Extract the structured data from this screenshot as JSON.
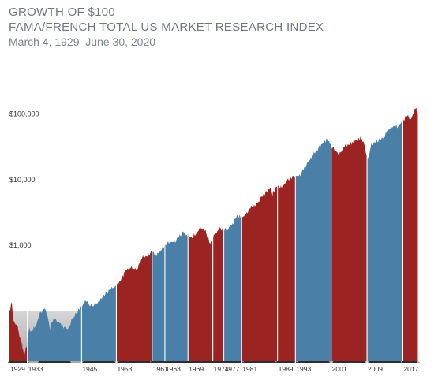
{
  "header": {
    "title": "GROWTH OF $100",
    "subtitle": "FAMA/FRENCH TOTAL US MARKET RESEARCH INDEX",
    "date_range": "March 4, 1929–June 30, 2020"
  },
  "colors": {
    "democrat": "#4a7fa8",
    "republican": "#9b2422",
    "photo_bg": "#bdbdbd"
  },
  "chart_data": {
    "type": "area",
    "title": "GROWTH OF $100",
    "subtitle": "FAMA/FRENCH TOTAL US MARKET RESEARCH INDEX",
    "xlim": [
      1929.17,
      2020.5
    ],
    "ylim": [
      17,
      480000
    ],
    "yscale": "log",
    "yticks": [
      {
        "value": 1000,
        "label": "$1,000"
      },
      {
        "value": 10000,
        "label": "$10,000"
      },
      {
        "value": 100000,
        "label": "$100,000"
      }
    ],
    "series_points": [
      [
        1929.17,
        100
      ],
      [
        1929.7,
        130
      ],
      [
        1930.0,
        72
      ],
      [
        1931.0,
        55
      ],
      [
        1932.0,
        28
      ],
      [
        1932.45,
        20
      ],
      [
        1933.0,
        30
      ],
      [
        1933.6,
        55
      ],
      [
        1934.0,
        48
      ],
      [
        1935.0,
        58
      ],
      [
        1936.0,
        90
      ],
      [
        1937.0,
        110
      ],
      [
        1937.7,
        80
      ],
      [
        1938.2,
        55
      ],
      [
        1939.0,
        75
      ],
      [
        1940.0,
        70
      ],
      [
        1941.0,
        58
      ],
      [
        1942.3,
        52
      ],
      [
        1943.0,
        72
      ],
      [
        1945.0,
        110
      ],
      [
        1946.3,
        145
      ],
      [
        1947.0,
        120
      ],
      [
        1948.0,
        125
      ],
      [
        1949.0,
        130
      ],
      [
        1950.0,
        165
      ],
      [
        1952.0,
        220
      ],
      [
        1953.0,
        235
      ],
      [
        1954.0,
        290
      ],
      [
        1955.0,
        400
      ],
      [
        1956.0,
        460
      ],
      [
        1957.7,
        420
      ],
      [
        1958.0,
        500
      ],
      [
        1959.0,
        650
      ],
      [
        1960.0,
        680
      ],
      [
        1961.0,
        800
      ],
      [
        1962.0,
        700
      ],
      [
        1963.0,
        850
      ],
      [
        1964.0,
        1000
      ],
      [
        1965.0,
        1150
      ],
      [
        1966.0,
        1080
      ],
      [
        1967.0,
        1350
      ],
      [
        1968.0,
        1550
      ],
      [
        1969.0,
        1400
      ],
      [
        1970.0,
        1300
      ],
      [
        1971.0,
        1550
      ],
      [
        1972.0,
        1850
      ],
      [
        1973.0,
        1600
      ],
      [
        1974.0,
        1050
      ],
      [
        1975.0,
        1400
      ],
      [
        1976.0,
        1800
      ],
      [
        1977.0,
        1700
      ],
      [
        1978.0,
        1800
      ],
      [
        1979.0,
        2100
      ],
      [
        1980.0,
        2800
      ],
      [
        1981.0,
        2650
      ],
      [
        1982.0,
        2900
      ],
      [
        1983.0,
        3800
      ],
      [
        1984.0,
        3900
      ],
      [
        1985.0,
        5000
      ],
      [
        1986.0,
        6000
      ],
      [
        1987.6,
        7500
      ],
      [
        1987.9,
        5500
      ],
      [
        1988.0,
        6200
      ],
      [
        1989.0,
        8000
      ],
      [
        1990.0,
        7500
      ],
      [
        1991.0,
        9500
      ],
      [
        1992.0,
        10500
      ],
      [
        1993.0,
        11500
      ],
      [
        1994.0,
        11300
      ],
      [
        1995.0,
        15000
      ],
      [
        1996.0,
        18500
      ],
      [
        1997.0,
        24000
      ],
      [
        1998.0,
        29000
      ],
      [
        1999.0,
        35000
      ],
      [
        2000.2,
        42000
      ],
      [
        2001.0,
        33000
      ],
      [
        2002.8,
        24000
      ],
      [
        2003.0,
        25000
      ],
      [
        2004.0,
        32000
      ],
      [
        2005.0,
        34000
      ],
      [
        2006.0,
        38000
      ],
      [
        2007.8,
        44000
      ],
      [
        2008.5,
        32000
      ],
      [
        2009.2,
        20000
      ],
      [
        2010.0,
        33000
      ],
      [
        2011.0,
        38000
      ],
      [
        2012.0,
        40000
      ],
      [
        2013.0,
        47000
      ],
      [
        2014.0,
        60000
      ],
      [
        2015.0,
        66000
      ],
      [
        2016.0,
        64000
      ],
      [
        2017.0,
        78000
      ],
      [
        2018.0,
        95000
      ],
      [
        2018.9,
        82000
      ],
      [
        2019.5,
        110000
      ],
      [
        2020.1,
        125000
      ],
      [
        2020.22,
        90000
      ],
      [
        2020.5,
        120000
      ]
    ],
    "presidencies": [
      {
        "start": 1929.17,
        "end": 1933.17,
        "party": "republican",
        "label": "1929"
      },
      {
        "start": 1933.17,
        "end": 1945.28,
        "party": "democrat",
        "label": "1933"
      },
      {
        "start": 1945.28,
        "end": 1953.05,
        "party": "democrat",
        "label": "1945"
      },
      {
        "start": 1953.05,
        "end": 1961.05,
        "party": "republican",
        "label": "1953"
      },
      {
        "start": 1961.05,
        "end": 1963.89,
        "party": "democrat",
        "label": "1961"
      },
      {
        "start": 1963.89,
        "end": 1969.05,
        "party": "democrat",
        "label": "1963"
      },
      {
        "start": 1969.05,
        "end": 1974.6,
        "party": "republican",
        "label": "1969"
      },
      {
        "start": 1974.6,
        "end": 1977.05,
        "party": "republican",
        "label": "1974"
      },
      {
        "start": 1977.05,
        "end": 1981.05,
        "party": "democrat",
        "label": "1977"
      },
      {
        "start": 1981.05,
        "end": 1989.05,
        "party": "republican",
        "label": "1981"
      },
      {
        "start": 1989.05,
        "end": 1993.05,
        "party": "republican",
        "label": "1989"
      },
      {
        "start": 1993.05,
        "end": 2001.05,
        "party": "democrat",
        "label": "1993"
      },
      {
        "start": 2001.05,
        "end": 2009.05,
        "party": "republican",
        "label": "2001"
      },
      {
        "start": 2009.05,
        "end": 2017.05,
        "party": "democrat",
        "label": "2009"
      },
      {
        "start": 2017.05,
        "end": 2020.5,
        "party": "republican",
        "label": "2017"
      }
    ]
  }
}
